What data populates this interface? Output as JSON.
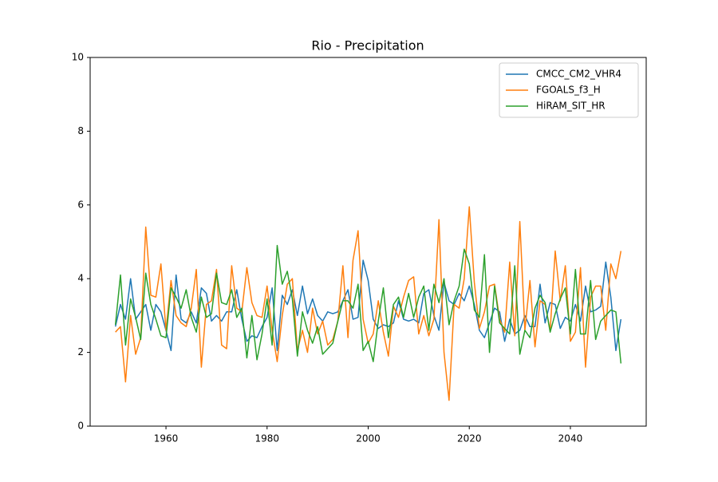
{
  "chart_data": {
    "type": "line",
    "title": "Rio - Precipitation",
    "x": [
      1950,
      1951,
      1952,
      1953,
      1954,
      1955,
      1956,
      1957,
      1958,
      1959,
      1960,
      1961,
      1962,
      1963,
      1964,
      1965,
      1966,
      1967,
      1968,
      1969,
      1970,
      1971,
      1972,
      1973,
      1974,
      1975,
      1976,
      1977,
      1978,
      1979,
      1980,
      1981,
      1982,
      1983,
      1984,
      1985,
      1986,
      1987,
      1988,
      1989,
      1990,
      1991,
      1992,
      1993,
      1994,
      1995,
      1996,
      1997,
      1998,
      1999,
      2000,
      2001,
      2002,
      2003,
      2004,
      2005,
      2006,
      2007,
      2008,
      2009,
      2010,
      2011,
      2012,
      2013,
      2014,
      2015,
      2016,
      2017,
      2018,
      2019,
      2020,
      2021,
      2022,
      2023,
      2024,
      2025,
      2026,
      2027,
      2028,
      2029,
      2030,
      2031,
      2032,
      2033,
      2034,
      2035,
      2036,
      2037,
      2038,
      2039,
      2040,
      2041,
      2042,
      2043,
      2044,
      2045,
      2046,
      2047,
      2048,
      2049,
      2050
    ],
    "series": [
      {
        "name": "CMCC_CM2_VHR4",
        "color": "#1f77b4",
        "values": [
          2.7,
          3.3,
          2.9,
          4.0,
          2.9,
          3.1,
          3.3,
          2.6,
          3.3,
          3.1,
          2.6,
          2.05,
          4.1,
          2.9,
          2.8,
          3.1,
          2.8,
          3.75,
          3.6,
          2.85,
          3.0,
          2.85,
          3.1,
          3.1,
          3.7,
          2.9,
          2.3,
          2.45,
          2.4,
          2.7,
          2.95,
          3.75,
          2.05,
          3.55,
          3.3,
          3.7,
          3.0,
          3.8,
          3.05,
          3.45,
          3.0,
          2.85,
          3.1,
          3.05,
          3.1,
          3.4,
          3.7,
          2.9,
          2.95,
          4.5,
          3.95,
          2.9,
          2.65,
          2.75,
          2.7,
          2.8,
          3.4,
          2.9,
          2.85,
          2.9,
          2.8,
          3.6,
          3.7,
          3.0,
          2.6,
          3.9,
          3.4,
          3.3,
          3.6,
          3.4,
          3.8,
          3.3,
          2.6,
          2.4,
          2.8,
          3.2,
          3.1,
          2.3,
          2.9,
          2.5,
          2.6,
          3.0,
          2.7,
          2.7,
          3.85,
          2.8,
          3.35,
          3.3,
          2.65,
          2.95,
          2.85,
          3.3,
          2.85,
          3.8,
          3.1,
          3.15,
          3.25,
          4.45,
          3.5,
          2.05,
          2.9
        ]
      },
      {
        "name": "FGOALS_f3_H",
        "color": "#ff7f0e",
        "values": [
          2.55,
          2.7,
          1.2,
          3.0,
          1.95,
          2.4,
          5.4,
          3.55,
          3.5,
          4.4,
          2.6,
          3.95,
          3.0,
          2.8,
          2.7,
          3.2,
          4.25,
          1.6,
          3.3,
          3.4,
          4.25,
          2.2,
          2.1,
          4.35,
          3.2,
          3.1,
          4.3,
          3.35,
          3.0,
          2.95,
          3.8,
          2.6,
          1.75,
          3.0,
          3.85,
          4.0,
          2.05,
          2.6,
          2.0,
          3.2,
          2.5,
          2.85,
          2.2,
          2.35,
          2.85,
          4.35,
          2.4,
          4.5,
          5.3,
          2.9,
          2.25,
          2.5,
          3.4,
          2.55,
          1.9,
          3.25,
          2.95,
          3.5,
          3.95,
          4.05,
          2.5,
          3.0,
          2.45,
          2.9,
          5.6,
          2.0,
          0.7,
          3.3,
          3.2,
          4.0,
          5.95,
          3.9,
          2.65,
          3.1,
          3.8,
          3.85,
          2.9,
          2.55,
          4.45,
          2.45,
          5.55,
          2.6,
          3.95,
          2.15,
          3.4,
          3.3,
          2.6,
          4.75,
          3.4,
          4.35,
          2.3,
          2.55,
          4.3,
          1.6,
          3.5,
          3.8,
          3.8,
          2.6,
          4.4,
          4.0,
          4.75
        ]
      },
      {
        "name": "HiRAM_SIT_HR",
        "color": "#2ca02c",
        "values": [
          2.75,
          4.1,
          2.2,
          3.45,
          2.95,
          2.35,
          4.15,
          3.3,
          2.9,
          2.45,
          2.4,
          3.75,
          3.5,
          3.2,
          3.7,
          2.95,
          2.55,
          3.5,
          2.95,
          3.05,
          4.15,
          3.35,
          3.3,
          3.7,
          2.95,
          3.2,
          1.85,
          3.0,
          1.8,
          2.5,
          3.45,
          2.2,
          4.9,
          3.85,
          4.2,
          3.45,
          1.9,
          3.1,
          2.6,
          2.25,
          2.7,
          1.95,
          2.1,
          2.25,
          2.85,
          3.4,
          3.4,
          3.2,
          3.85,
          2.05,
          2.3,
          1.75,
          2.85,
          3.75,
          2.4,
          3.3,
          3.5,
          2.95,
          3.6,
          2.95,
          3.5,
          3.8,
          2.6,
          3.85,
          3.35,
          4.0,
          2.75,
          3.4,
          3.8,
          4.8,
          4.4,
          3.15,
          2.95,
          4.65,
          2.0,
          3.8,
          2.8,
          2.65,
          2.5,
          4.35,
          1.95,
          2.6,
          2.4,
          3.2,
          3.55,
          3.35,
          2.55,
          3.05,
          3.45,
          3.75,
          2.5,
          4.25,
          2.5,
          2.5,
          3.95,
          2.35,
          2.85,
          3.0,
          3.15,
          3.1,
          1.7
        ]
      }
    ],
    "xlim": [
      1945,
      2055
    ],
    "xticks": [
      1960,
      1980,
      2000,
      2020,
      2040
    ],
    "ylim": [
      0,
      10
    ],
    "yticks": [
      0,
      2,
      4,
      6,
      8,
      10
    ],
    "legend": "upper right"
  }
}
